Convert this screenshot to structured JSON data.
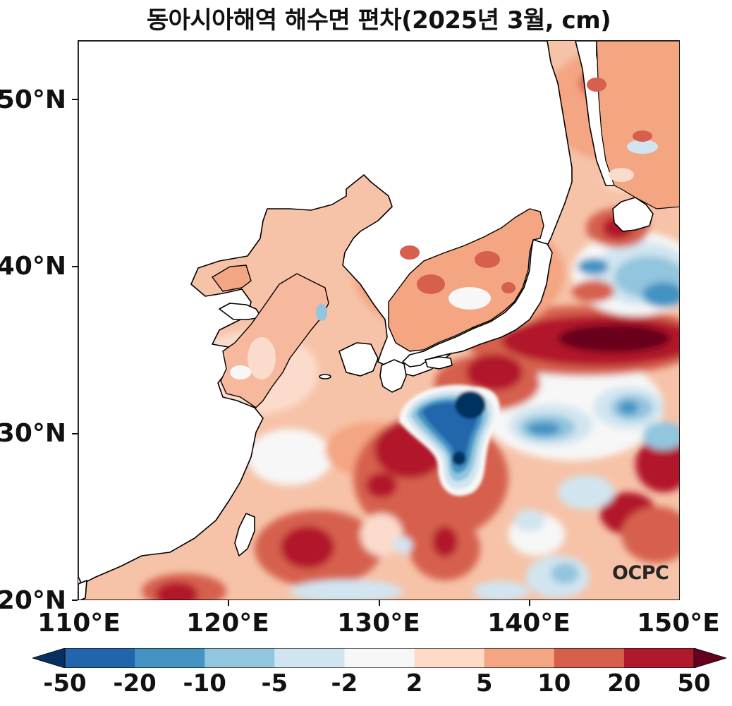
{
  "title": "동아시아해역 해수면 편차(2025년 3월, cm)",
  "watermark": "OCPC",
  "map": {
    "type": "filled-contour",
    "variable": "sea level anomaly",
    "unit": "cm",
    "lon_range": [
      110,
      150
    ],
    "lat_range": [
      20,
      53.5
    ],
    "lat_ticks": [
      "20°N",
      "30°N",
      "40°N",
      "50°N"
    ],
    "lon_ticks": [
      "110°E",
      "120°E",
      "130°E",
      "140°E",
      "150°E"
    ],
    "land_color": "#ffffff",
    "coastline_color": "#000000",
    "features": [
      {
        "name": "negative-anomaly-south-japan",
        "lon": 135.5,
        "lat": 31,
        "level": "-50"
      },
      {
        "name": "positive-anomaly-kuroshio-ext",
        "lon": 145,
        "lat": 35.5,
        "level": "50"
      },
      {
        "name": "negative-anomaly-off-tohoku",
        "lon": 146,
        "lat": 39,
        "level": "-10"
      },
      {
        "name": "negative-anomaly-western-pacific",
        "lon": 143,
        "lat": 29,
        "level": "-10"
      }
    ]
  },
  "colorbar": {
    "extend": "both",
    "labels": [
      "-50",
      "-20",
      "-10",
      "-5",
      "-2",
      "2",
      "5",
      "10",
      "20",
      "50"
    ],
    "colors": [
      "#053061",
      "#2166ac",
      "#4393c3",
      "#92c5de",
      "#d1e5f0",
      "#f7f7f7",
      "#fddbc7",
      "#f4a582",
      "#d6604d",
      "#b2182b",
      "#67001f"
    ]
  }
}
